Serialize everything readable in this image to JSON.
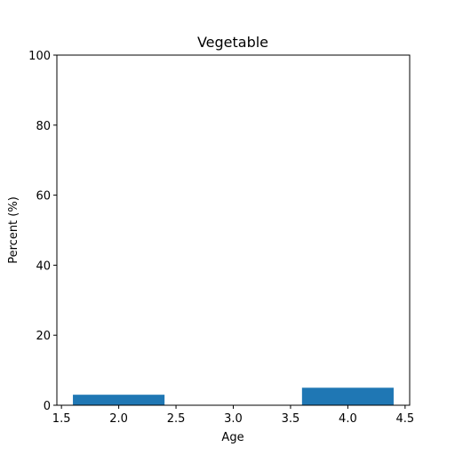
{
  "chart_data": {
    "type": "bar",
    "title": "Vegetable",
    "xlabel": "Age",
    "ylabel": "Percent (%)",
    "x": [
      2,
      4
    ],
    "values": [
      3,
      5
    ],
    "bar_width": 0.8,
    "xlim": [
      1.46,
      4.54
    ],
    "ylim": [
      0,
      100
    ],
    "xticks": [
      1.5,
      2.0,
      2.5,
      3.0,
      3.5,
      4.0,
      4.5
    ],
    "xtick_labels": [
      "1.5",
      "2.0",
      "2.5",
      "3.0",
      "3.5",
      "4.0",
      "4.5"
    ],
    "yticks": [
      0,
      20,
      40,
      60,
      80,
      100
    ],
    "ytick_labels": [
      "0",
      "20",
      "40",
      "60",
      "80",
      "100"
    ],
    "bar_color": "#1f77b4",
    "grid": false
  }
}
